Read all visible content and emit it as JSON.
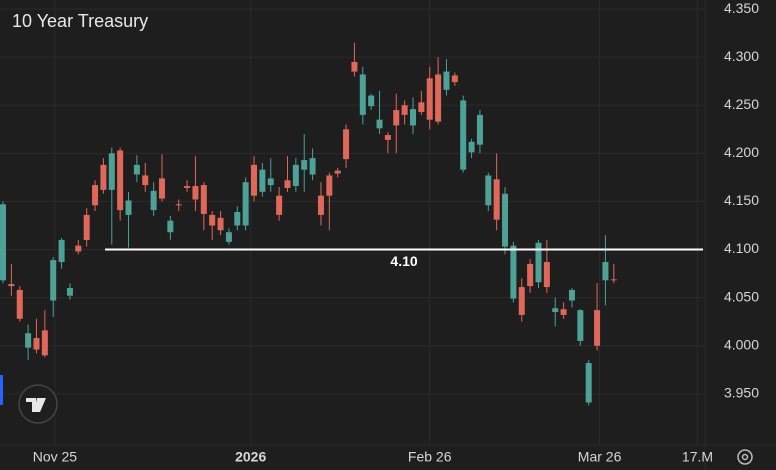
{
  "chart_data": {
    "type": "candlestick",
    "title": "10 Year Treasury",
    "up_color": "#4da197",
    "down_color": "#e0685a",
    "open": [
      4.068,
      4.064,
      4.058,
      3.998,
      4.008,
      4.016,
      4.047,
      4.087,
      4.052,
      4.104,
      4.136,
      4.167,
      4.188,
      4.162,
      4.203,
      4.136,
      4.178,
      4.177,
      4.141,
      4.174,
      4.118,
      4.147,
      4.166,
      4.166,
      4.167,
      4.136,
      4.133,
      4.108,
      4.125,
      4.125,
      4.188,
      4.16,
      4.167,
      4.156,
      4.172,
      4.166,
      4.183,
      4.178,
      4.156,
      4.177,
      4.182,
      4.225,
      4.295,
      4.24,
      4.249,
      4.226,
      4.219,
      4.245,
      4.25,
      4.229,
      4.253,
      4.278,
      4.282,
      4.266,
      4.281,
      4.183,
      4.201,
      4.209,
      4.146,
      4.173,
      4.103,
      4.049,
      4.061,
      4.085,
      4.066,
      4.087,
      4.035,
      4.038,
      4.047,
      4.005,
      3.941,
      4.037,
      4.068,
      4.069
    ],
    "high": [
      4.15,
      4.085,
      4.062,
      4.022,
      4.028,
      4.037,
      4.092,
      4.112,
      4.065,
      4.11,
      4.143,
      4.172,
      4.195,
      4.206,
      4.206,
      4.16,
      4.198,
      4.19,
      4.17,
      4.199,
      4.135,
      4.152,
      4.172,
      4.197,
      4.17,
      4.14,
      4.14,
      4.122,
      4.145,
      4.175,
      4.197,
      4.19,
      4.195,
      4.165,
      4.197,
      4.195,
      4.22,
      4.205,
      4.17,
      4.18,
      4.185,
      4.23,
      4.315,
      4.29,
      4.262,
      4.265,
      4.222,
      4.262,
      4.255,
      4.258,
      4.265,
      4.29,
      4.3,
      4.298,
      4.284,
      4.26,
      4.215,
      4.245,
      4.18,
      4.2,
      4.165,
      4.108,
      4.07,
      4.09,
      4.11,
      4.11,
      4.05,
      4.045,
      4.06,
      4.038,
      3.985,
      4.065,
      4.115,
      4.085
    ],
    "low": [
      4.065,
      4.052,
      4.025,
      3.985,
      3.992,
      3.988,
      4.03,
      4.08,
      4.048,
      4.095,
      4.103,
      4.14,
      4.158,
      4.105,
      4.13,
      4.102,
      4.17,
      4.16,
      4.135,
      4.15,
      4.11,
      4.14,
      4.16,
      4.14,
      4.12,
      4.11,
      4.115,
      4.105,
      4.12,
      4.12,
      4.15,
      4.155,
      4.16,
      4.13,
      4.16,
      4.16,
      4.16,
      4.172,
      4.125,
      4.12,
      4.175,
      4.185,
      4.28,
      4.23,
      4.245,
      4.22,
      4.2,
      4.2,
      4.23,
      4.22,
      4.24,
      4.225,
      4.23,
      4.26,
      4.27,
      4.18,
      4.195,
      4.2,
      4.14,
      4.12,
      4.095,
      4.045,
      4.025,
      4.055,
      4.06,
      4.055,
      4.02,
      4.028,
      4.04,
      4.0,
      3.938,
      3.995,
      4.042,
      4.065
    ],
    "close": [
      4.147,
      4.062,
      4.028,
      4.013,
      3.996,
      3.99,
      4.089,
      4.11,
      4.06,
      4.098,
      4.11,
      4.146,
      4.162,
      4.2,
      4.141,
      4.151,
      4.188,
      4.167,
      4.161,
      4.153,
      4.13,
      4.146,
      4.164,
      4.152,
      4.137,
      4.125,
      4.12,
      4.118,
      4.139,
      4.17,
      4.156,
      4.183,
      4.174,
      4.136,
      4.164,
      4.188,
      4.193,
      4.195,
      4.136,
      4.156,
      4.179,
      4.194,
      4.285,
      4.282,
      4.26,
      4.235,
      4.214,
      4.229,
      4.24,
      4.246,
      4.243,
      4.235,
      4.233,
      4.285,
      4.274,
      4.255,
      4.212,
      4.24,
      4.177,
      4.131,
      4.158,
      4.104,
      4.032,
      4.062,
      4.107,
      4.061,
      4.039,
      4.032,
      4.058,
      4.037,
      3.982,
      4.0,
      4.087,
      4.068
    ],
    "xlim": [
      -0.36,
      83.9
    ],
    "xticks": [
      {
        "value": 6.2,
        "label": "Nov 25"
      },
      {
        "value": 29.6,
        "label": "2026"
      },
      {
        "value": 51,
        "label": "Feb 26"
      },
      {
        "value": 71.3,
        "label": "Mar 26"
      },
      {
        "value": 83,
        "label": "17.M"
      }
    ],
    "ylim": [
      3.8968,
      4.3594
    ],
    "yticks": [
      {
        "value": 4.35,
        "label": "4.350"
      },
      {
        "value": 4.3,
        "label": "4.300"
      },
      {
        "value": 4.25,
        "label": "4.250"
      },
      {
        "value": 4.2,
        "label": "4.200"
      },
      {
        "value": 4.15,
        "label": "4.150"
      },
      {
        "value": 4.1,
        "label": "4.100"
      },
      {
        "value": 4.05,
        "label": "4.050"
      },
      {
        "value": 4.0,
        "label": "4.000"
      },
      {
        "value": 3.95,
        "label": "3.950"
      }
    ],
    "grid": true,
    "hline": {
      "value": 4.1,
      "label": "4.10",
      "from_x": 12.2
    }
  }
}
